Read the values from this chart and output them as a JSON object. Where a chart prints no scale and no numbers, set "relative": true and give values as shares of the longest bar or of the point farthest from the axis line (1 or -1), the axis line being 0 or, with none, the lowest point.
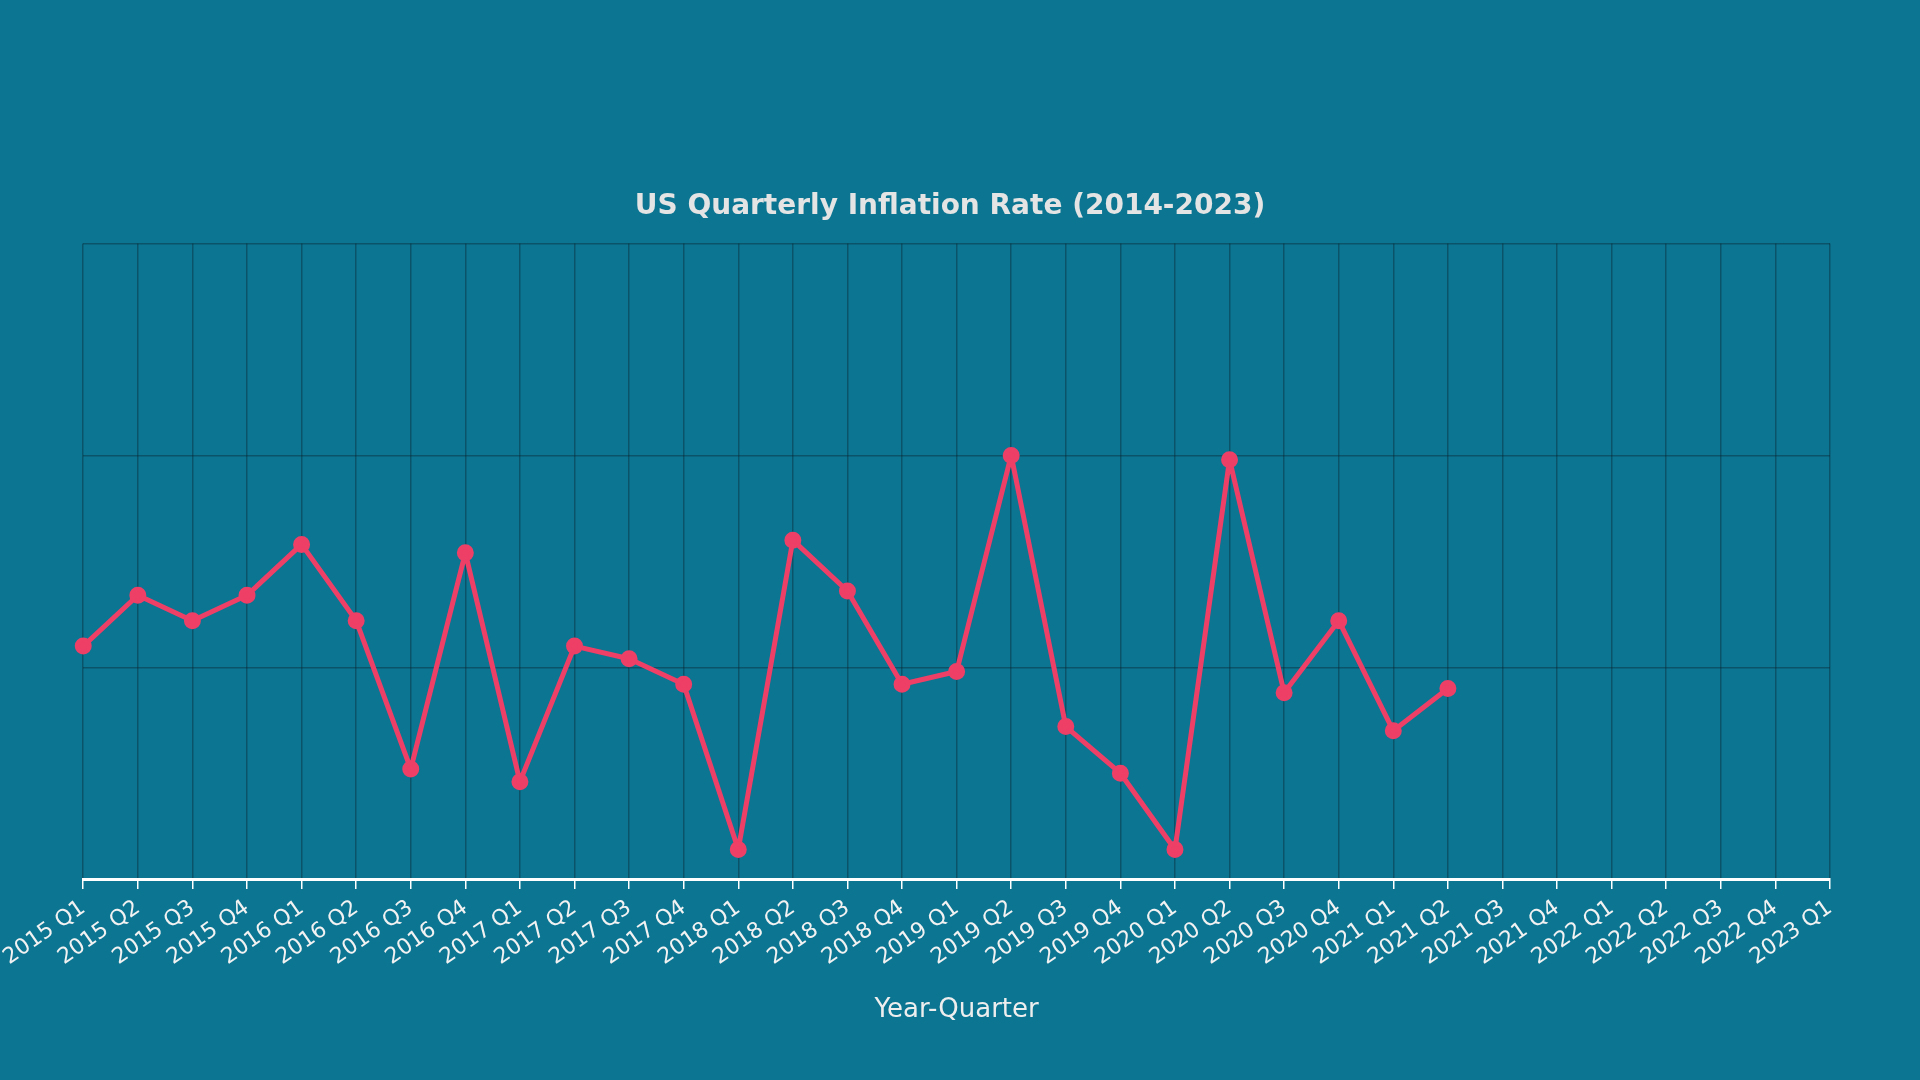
{
  "chart_data": {
    "type": "line",
    "title": "US Quarterly Inflation Rate (2014-2023)",
    "xlabel": "Year-Quarter",
    "categories": [
      "2015 Q1",
      "2015 Q2",
      "2015 Q3",
      "2015 Q4",
      "2016 Q1",
      "2016 Q2",
      "2016 Q3",
      "2016 Q4",
      "2017 Q1",
      "2017 Q2",
      "2017 Q3",
      "2017 Q4",
      "2018 Q1",
      "2018 Q2",
      "2018 Q3",
      "2018 Q4",
      "2019 Q1",
      "2019 Q2",
      "2019 Q3",
      "2019 Q4",
      "2020 Q1",
      "2020 Q2",
      "2020 Q3",
      "2020 Q4",
      "2021 Q1",
      "2021 Q2",
      "2021 Q3",
      "2021 Q4",
      "2022 Q1",
      "2022 Q2",
      "2022 Q3",
      "2022 Q4",
      "2023 Q1"
    ],
    "values": [
      0.55,
      0.67,
      0.61,
      0.67,
      0.79,
      0.61,
      0.26,
      0.77,
      0.23,
      0.55,
      0.52,
      0.46,
      0.07,
      0.8,
      0.68,
      0.46,
      0.49,
      1,
      0.36,
      0.25,
      0.07,
      0.99,
      0.44,
      0.61,
      0.35,
      0.45,
      null,
      null,
      null,
      null,
      null,
      null,
      null
    ],
    "color": "#ee3f67",
    "relative": true,
    "grid": true,
    "marker": "circle",
    "line_style": "solid"
  }
}
